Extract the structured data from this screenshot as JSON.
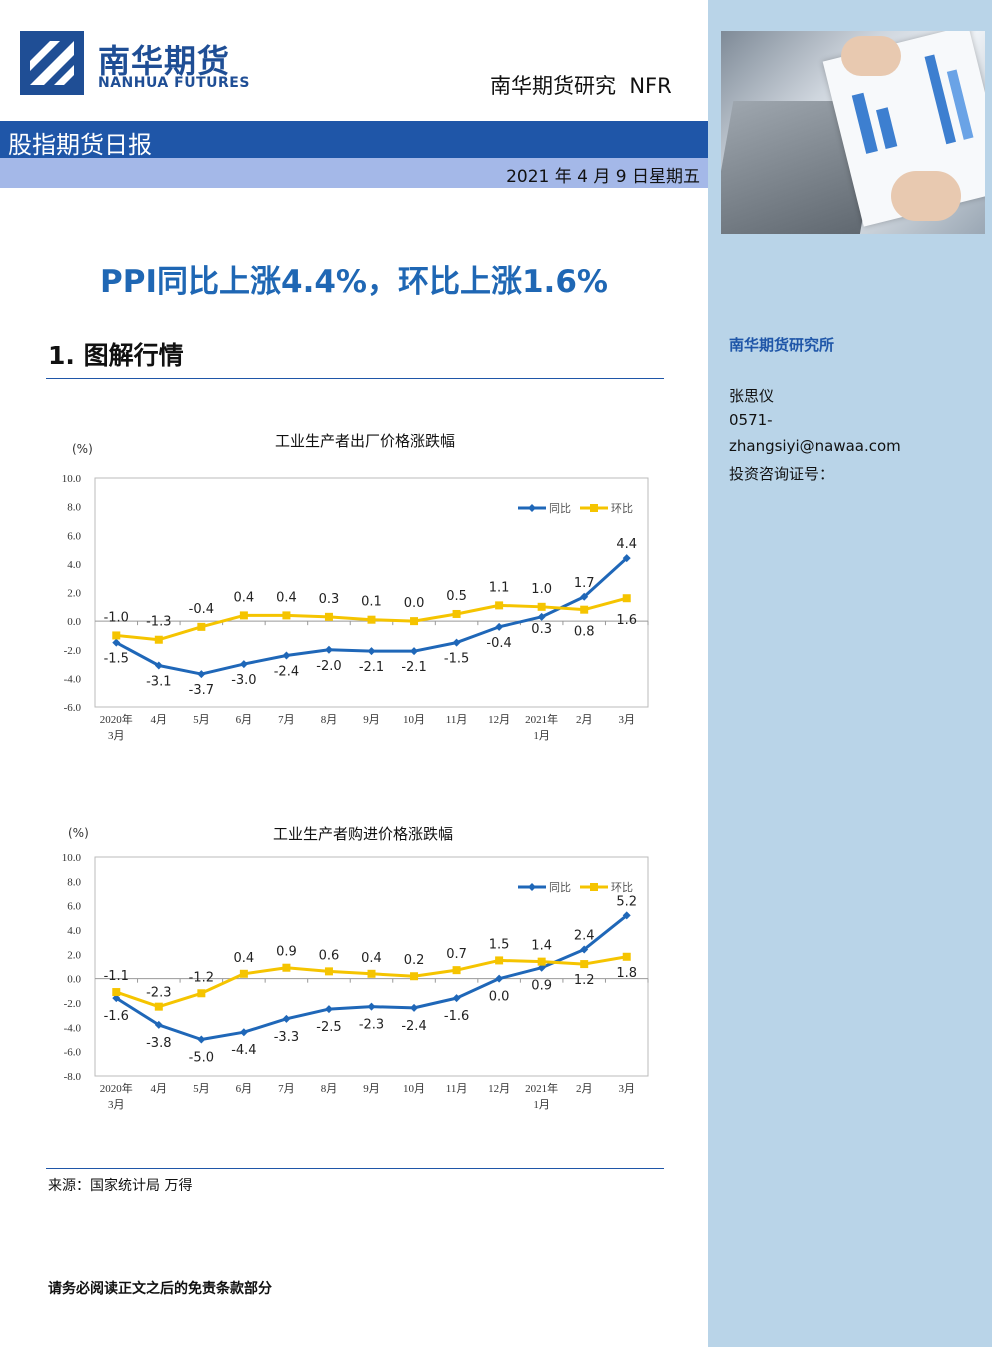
{
  "header": {
    "logo_cn": "南华期货",
    "logo_en": "NANHUA FUTURES",
    "research": "南华期货研究  NFR",
    "report_title": "股指期货日报",
    "date": "2021 年 4 月 9 日星期五"
  },
  "headline": "PPI同比上涨4.4%，环比上涨1.6%",
  "section_title": "1. 图解行情",
  "source": "来源：国家统计局  万得",
  "disclaimer": "请务必阅读正文之后的免责条款部分",
  "sidebar": {
    "institute": "南华期货研究所",
    "analyst": "张思仪",
    "phone": "0571-",
    "email": "zhangsiyi@nawaa.com",
    "license": "投资咨询证号："
  },
  "colors": {
    "yoy": "#1f67b8",
    "mom": "#f5c400",
    "brand": "#1f56a8"
  },
  "chart_data": [
    {
      "type": "line",
      "title": "工业生产者出厂价格涨跌幅",
      "unit": "(%)",
      "categories": [
        "2020年|3月",
        "4月",
        "5月",
        "6月",
        "7月",
        "8月",
        "9月",
        "10月",
        "11月",
        "12月",
        "2021年|1月",
        "2月",
        "3月"
      ],
      "ylim": [
        -6.0,
        10.0
      ],
      "yticks": [
        "10.0",
        "8.0",
        "6.0",
        "4.0",
        "2.0",
        "0.0",
        "-2.0",
        "-4.0",
        "-6.0"
      ],
      "legend_position": "top-right",
      "series": [
        {
          "name": "同比",
          "values": [
            -1.5,
            -3.1,
            -3.7,
            -3.0,
            -2.4,
            -2.0,
            -2.1,
            -2.1,
            -1.5,
            -0.4,
            0.3,
            1.7,
            4.4
          ],
          "labels": [
            "-1.5",
            "-3.1",
            "-3.7",
            "-3.0",
            "-2.4",
            "-2.0",
            "-2.1",
            "-2.1",
            "-1.5",
            "-0.4",
            "0.3",
            "1.7",
            "4.4"
          ]
        },
        {
          "name": "环比",
          "values": [
            -1.0,
            -1.3,
            -0.4,
            0.4,
            0.4,
            0.3,
            0.1,
            0.0,
            0.5,
            1.1,
            1.0,
            0.8,
            1.6
          ],
          "labels": [
            "-1.0",
            "-1.3",
            "-0.4",
            "0.4",
            "0.4",
            "0.3",
            "0.1",
            "0.0",
            "0.5",
            "1.1",
            "1.0",
            "0.8",
            "1.6"
          ]
        }
      ]
    },
    {
      "type": "line",
      "title": "工业生产者购进价格涨跌幅",
      "unit": "(%)",
      "categories": [
        "2020年|3月",
        "4月",
        "5月",
        "6月",
        "7月",
        "8月",
        "9月",
        "10月",
        "11月",
        "12月",
        "2021年|1月",
        "2月",
        "3月"
      ],
      "ylim": [
        -8.0,
        10.0
      ],
      "yticks": [
        "10.0",
        "8.0",
        "6.0",
        "4.0",
        "2.0",
        "0.0",
        "-2.0",
        "-4.0",
        "-6.0",
        "-8.0"
      ],
      "legend_position": "top-right",
      "series": [
        {
          "name": "同比",
          "values": [
            -1.6,
            -3.8,
            -5.0,
            -4.4,
            -3.3,
            -2.5,
            -2.3,
            -2.4,
            -1.6,
            0.0,
            0.9,
            2.4,
            5.2
          ],
          "labels": [
            "-1.6",
            "-3.8",
            "-5.0",
            "-4.4",
            "-3.3",
            "-2.5",
            "-2.3",
            "-2.4",
            "-1.6",
            "0.0",
            "0.9",
            "2.4",
            "5.2"
          ]
        },
        {
          "name": "环比",
          "values": [
            -1.1,
            -2.3,
            -1.2,
            0.4,
            0.9,
            0.6,
            0.4,
            0.2,
            0.7,
            1.5,
            1.4,
            1.2,
            1.8
          ],
          "labels": [
            "-1.1",
            "-2.3",
            "-1.2",
            "0.4",
            "0.9",
            "0.6",
            "0.4",
            "0.2",
            "0.7",
            "1.5",
            "1.4",
            "1.2",
            "1.8"
          ]
        }
      ]
    }
  ]
}
